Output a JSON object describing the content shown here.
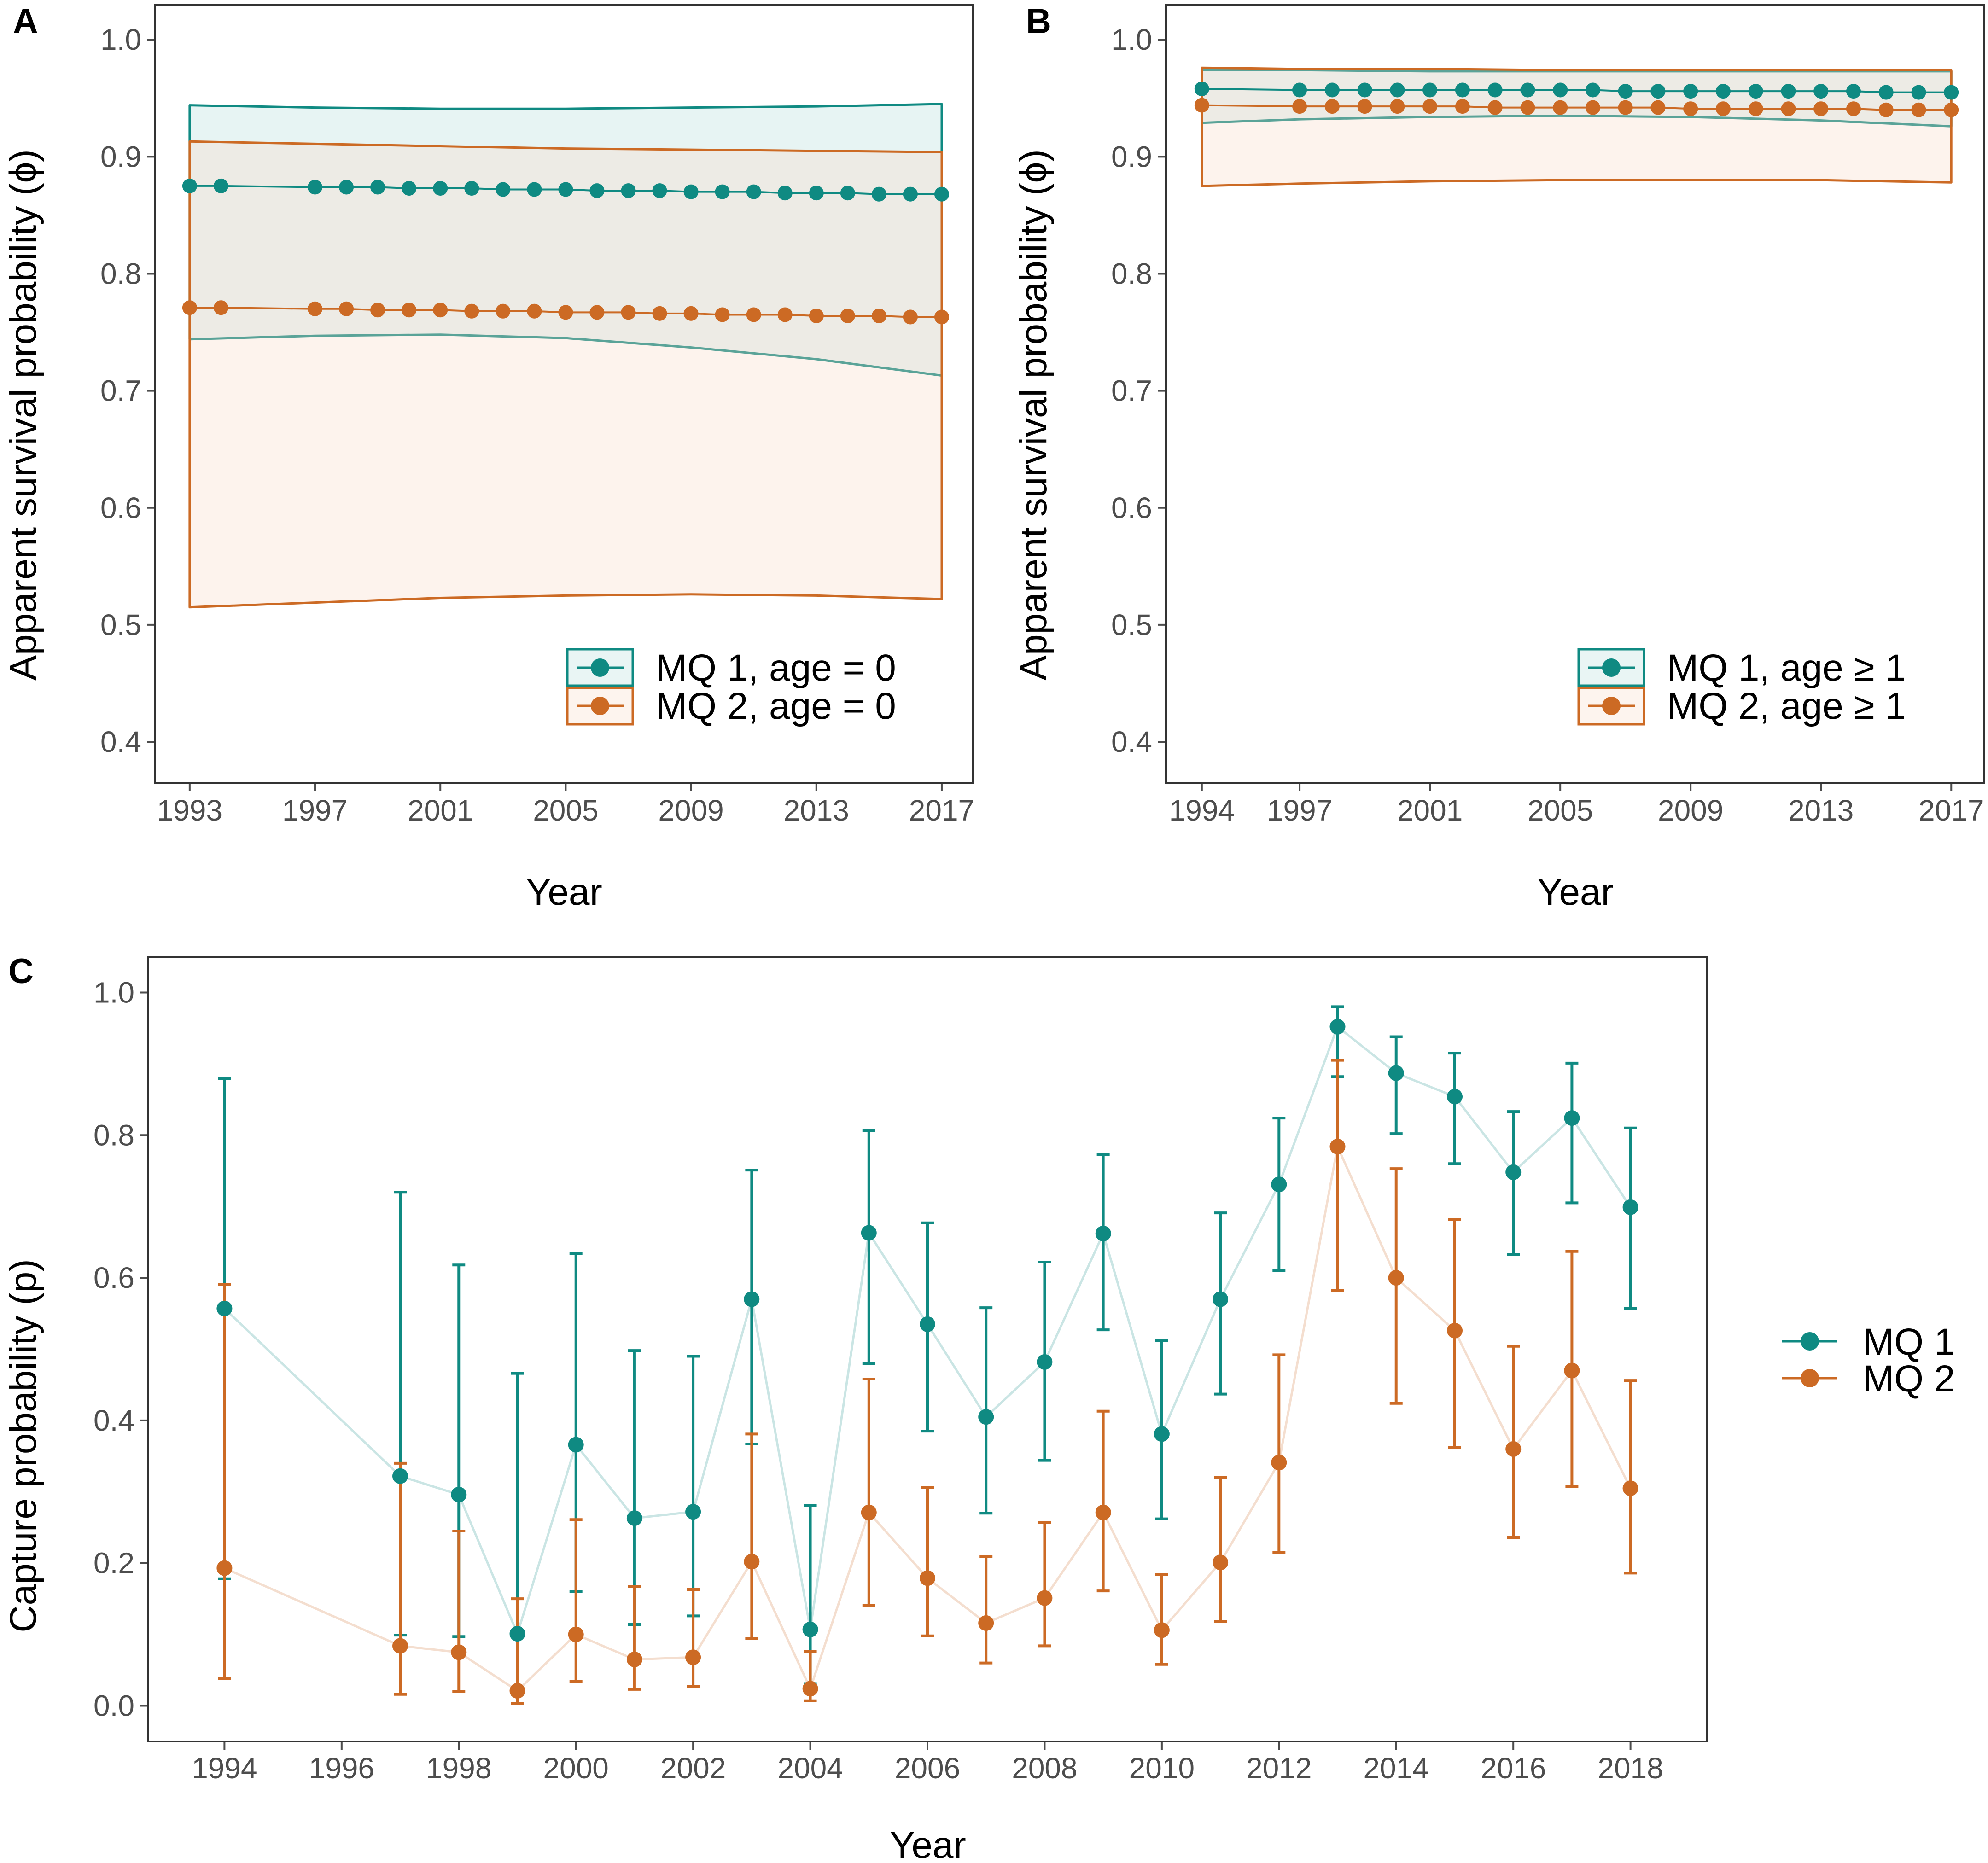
{
  "colors": {
    "mq1": "#0f8a82",
    "mq2": "#cc6a24",
    "mq1_fill": "#b5dddb",
    "mq2_fill": "#f8d9c6",
    "frame": "#333333",
    "tick": "#4d4d4d"
  },
  "chart_data": [
    {
      "panel": "A",
      "type": "line",
      "xlabel": "Year",
      "ylabel": "Apparent survival probability (ϕ)",
      "xlim": [
        1991.9,
        2018.0
      ],
      "ylim": [
        0.365,
        1.03
      ],
      "xticks": [
        1993,
        1997,
        2001,
        2005,
        2009,
        2013,
        2017
      ],
      "yticks": [
        0.4,
        0.5,
        0.6,
        0.7,
        0.8,
        0.9,
        1.0
      ],
      "ytick_labels": [
        "0.4",
        "0.5",
        "0.6",
        "0.7",
        "0.8",
        "0.9",
        "1.0"
      ],
      "legend_position": "bottom-right",
      "series": [
        {
          "name": "MQ 1, age = 0",
          "color_key": "mq1",
          "x": [
            1993,
            1994,
            1997,
            1998,
            1999,
            2000,
            2001,
            2002,
            2003,
            2004,
            2005,
            2006,
            2007,
            2008,
            2009,
            2010,
            2011,
            2012,
            2013,
            2014,
            2015,
            2016,
            2017
          ],
          "y": [
            0.875,
            0.875,
            0.874,
            0.874,
            0.874,
            0.873,
            0.873,
            0.873,
            0.872,
            0.872,
            0.872,
            0.871,
            0.871,
            0.871,
            0.87,
            0.87,
            0.87,
            0.869,
            0.869,
            0.869,
            0.868,
            0.868,
            0.868
          ],
          "band": {
            "x": [
              1993,
              1997,
              2001,
              2005,
              2009,
              2013,
              2017
            ],
            "lower": [
              0.744,
              0.747,
              0.748,
              0.745,
              0.737,
              0.727,
              0.713
            ],
            "upper": [
              0.944,
              0.942,
              0.941,
              0.941,
              0.942,
              0.943,
              0.945
            ]
          }
        },
        {
          "name": "MQ 2, age = 0",
          "color_key": "mq2",
          "x": [
            1993,
            1994,
            1997,
            1998,
            1999,
            2000,
            2001,
            2002,
            2003,
            2004,
            2005,
            2006,
            2007,
            2008,
            2009,
            2010,
            2011,
            2012,
            2013,
            2014,
            2015,
            2016,
            2017
          ],
          "y": [
            0.771,
            0.771,
            0.77,
            0.77,
            0.769,
            0.769,
            0.769,
            0.768,
            0.768,
            0.768,
            0.767,
            0.767,
            0.767,
            0.766,
            0.766,
            0.765,
            0.765,
            0.765,
            0.764,
            0.764,
            0.764,
            0.763,
            0.763
          ],
          "band": {
            "x": [
              1993,
              1997,
              2001,
              2005,
              2009,
              2013,
              2017
            ],
            "lower": [
              0.515,
              0.519,
              0.523,
              0.525,
              0.526,
              0.525,
              0.522
            ],
            "upper": [
              0.913,
              0.911,
              0.909,
              0.907,
              0.906,
              0.905,
              0.904
            ]
          }
        }
      ]
    },
    {
      "panel": "B",
      "type": "line",
      "xlabel": "Year",
      "ylabel": "Apparent survival probability (ϕ)",
      "xlim": [
        1992.9,
        2018.0
      ],
      "ylim": [
        0.365,
        1.03
      ],
      "xticks": [
        1994,
        1997,
        2001,
        2005,
        2009,
        2013,
        2017
      ],
      "yticks": [
        0.4,
        0.5,
        0.6,
        0.7,
        0.8,
        0.9,
        1.0
      ],
      "ytick_labels": [
        "0.4",
        "0.5",
        "0.6",
        "0.7",
        "0.8",
        "0.9",
        "1.0"
      ],
      "legend_position": "bottom-right",
      "series": [
        {
          "name": "MQ 1, age ≥ 1",
          "color_key": "mq1",
          "x": [
            1994,
            1997,
            1998,
            1999,
            2000,
            2001,
            2002,
            2003,
            2004,
            2005,
            2006,
            2007,
            2008,
            2009,
            2010,
            2011,
            2012,
            2013,
            2014,
            2015,
            2016,
            2017
          ],
          "y": [
            0.958,
            0.957,
            0.957,
            0.957,
            0.957,
            0.957,
            0.957,
            0.957,
            0.957,
            0.957,
            0.957,
            0.956,
            0.956,
            0.956,
            0.956,
            0.956,
            0.956,
            0.956,
            0.956,
            0.955,
            0.955,
            0.955
          ],
          "band": {
            "x": [
              1994,
              1997,
              2001,
              2005,
              2009,
              2013,
              2017
            ],
            "lower": [
              0.929,
              0.932,
              0.934,
              0.935,
              0.934,
              0.931,
              0.926
            ],
            "upper": [
              0.974,
              0.974,
              0.973,
              0.973,
              0.973,
              0.973,
              0.973
            ]
          }
        },
        {
          "name": "MQ 2, age ≥ 1",
          "color_key": "mq2",
          "x": [
            1994,
            1997,
            1998,
            1999,
            2000,
            2001,
            2002,
            2003,
            2004,
            2005,
            2006,
            2007,
            2008,
            2009,
            2010,
            2011,
            2012,
            2013,
            2014,
            2015,
            2016,
            2017
          ],
          "y": [
            0.944,
            0.943,
            0.943,
            0.943,
            0.943,
            0.943,
            0.943,
            0.942,
            0.942,
            0.942,
            0.942,
            0.942,
            0.942,
            0.941,
            0.941,
            0.941,
            0.941,
            0.941,
            0.941,
            0.94,
            0.94,
            0.94
          ],
          "band": {
            "x": [
              1994,
              1997,
              2001,
              2005,
              2009,
              2013,
              2017
            ],
            "lower": [
              0.875,
              0.877,
              0.879,
              0.88,
              0.88,
              0.88,
              0.878
            ],
            "upper": [
              0.976,
              0.975,
              0.975,
              0.974,
              0.974,
              0.974,
              0.974
            ]
          }
        }
      ]
    },
    {
      "panel": "C",
      "type": "line",
      "xlabel": "Year",
      "ylabel": "Capture probability (p)",
      "xlim": [
        1992.7,
        2019.3
      ],
      "ylim": [
        -0.05,
        1.05
      ],
      "xticks": [
        1994,
        1996,
        1998,
        2000,
        2002,
        2004,
        2006,
        2008,
        2010,
        2012,
        2014,
        2016,
        2018
      ],
      "yticks": [
        0.0,
        0.2,
        0.4,
        0.6,
        0.8,
        1.0
      ],
      "ytick_labels": [
        "0.0",
        "0.2",
        "0.4",
        "0.6",
        "0.8",
        "1.0"
      ],
      "legend_position": "right",
      "series": [
        {
          "name": "MQ 1",
          "color_key": "mq1",
          "x": [
            1994,
            1997,
            1998,
            1999,
            2000,
            2001,
            2002,
            2003,
            2004,
            2005,
            2006,
            2007,
            2008,
            2009,
            2010,
            2011,
            2012,
            2013,
            2014,
            2015,
            2016,
            2017,
            2018
          ],
          "y": [
            0.557,
            0.322,
            0.296,
            0.101,
            0.366,
            0.263,
            0.272,
            0.57,
            0.107,
            0.663,
            0.535,
            0.405,
            0.482,
            0.662,
            0.381,
            0.57,
            0.731,
            0.952,
            0.887,
            0.854,
            0.748,
            0.824,
            0.699
          ],
          "lower": [
            0.178,
            0.099,
            0.097,
            0.016,
            0.16,
            0.114,
            0.126,
            0.367,
            0.031,
            0.48,
            0.385,
            0.27,
            0.344,
            0.527,
            0.262,
            0.437,
            0.61,
            0.882,
            0.802,
            0.76,
            0.633,
            0.705,
            0.557
          ],
          "upper": [
            0.879,
            0.72,
            0.618,
            0.466,
            0.634,
            0.498,
            0.49,
            0.751,
            0.281,
            0.806,
            0.677,
            0.558,
            0.622,
            0.773,
            0.512,
            0.691,
            0.824,
            0.98,
            0.938,
            0.915,
            0.833,
            0.901,
            0.81
          ]
        },
        {
          "name": "MQ 2",
          "color_key": "mq2",
          "x": [
            1994,
            1997,
            1998,
            1999,
            2000,
            2001,
            2002,
            2003,
            2004,
            2005,
            2006,
            2007,
            2008,
            2009,
            2010,
            2011,
            2012,
            2013,
            2014,
            2015,
            2016,
            2017,
            2018
          ],
          "y": [
            0.193,
            0.084,
            0.075,
            0.021,
            0.1,
            0.065,
            0.068,
            0.202,
            0.024,
            0.271,
            0.179,
            0.116,
            0.151,
            0.271,
            0.106,
            0.201,
            0.341,
            0.784,
            0.6,
            0.526,
            0.36,
            0.47,
            0.305
          ],
          "lower": [
            0.038,
            0.016,
            0.02,
            0.003,
            0.034,
            0.023,
            0.027,
            0.094,
            0.007,
            0.141,
            0.098,
            0.06,
            0.084,
            0.161,
            0.058,
            0.118,
            0.215,
            0.582,
            0.424,
            0.362,
            0.236,
            0.307,
            0.186
          ],
          "upper": [
            0.591,
            0.34,
            0.245,
            0.15,
            0.261,
            0.167,
            0.163,
            0.381,
            0.076,
            0.458,
            0.306,
            0.209,
            0.257,
            0.413,
            0.184,
            0.32,
            0.492,
            0.905,
            0.753,
            0.682,
            0.504,
            0.637,
            0.456
          ]
        }
      ]
    }
  ]
}
